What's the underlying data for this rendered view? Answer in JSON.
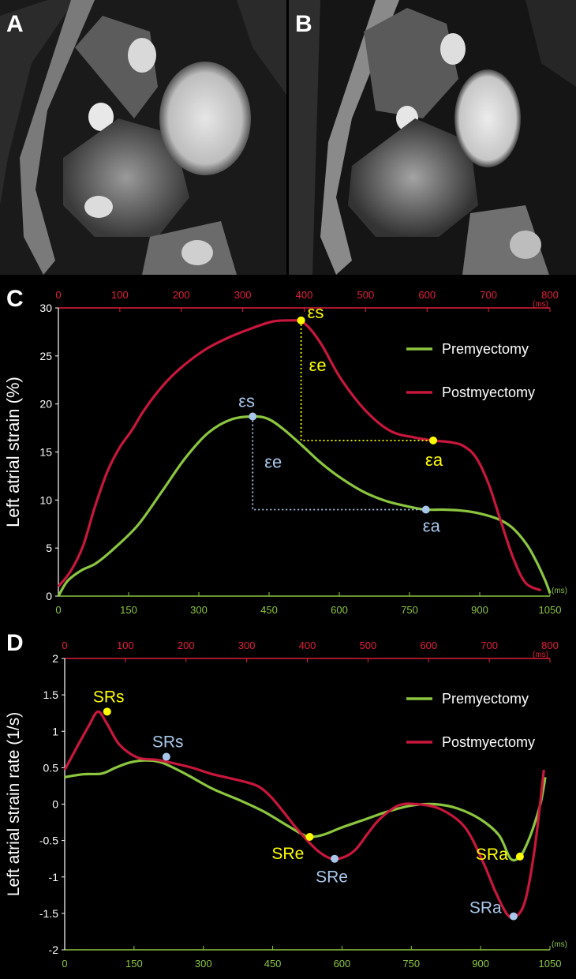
{
  "panels": {
    "a": {
      "letter": "A"
    },
    "b": {
      "letter": "B"
    },
    "c": {
      "letter": "C"
    },
    "d": {
      "letter": "D"
    }
  },
  "colors": {
    "pre": "#8cc63f",
    "post": "#c8173c",
    "annot_yellow": "#ffff00",
    "annot_blue": "#a9c7ea",
    "top_axis": "#e0203a",
    "bottom_axis": "#8cc63f"
  },
  "chart_data": [
    {
      "type": "line",
      "panel": "C",
      "ylabel": "Left atrial strain (%)",
      "ylim": [
        0,
        30
      ],
      "yticks": [
        0,
        5,
        10,
        15,
        20,
        25,
        30
      ],
      "x_bottom": {
        "range": [
          0,
          1050
        ],
        "ticks": [
          0,
          150,
          300,
          450,
          600,
          750,
          900,
          1050
        ],
        "unit": "(ms)"
      },
      "x_top": {
        "range": [
          0,
          800
        ],
        "ticks": [
          0,
          100,
          200,
          300,
          400,
          500,
          600,
          700,
          800
        ],
        "unit": "(ms)"
      },
      "legend": [
        "Premyectomy",
        "Postmyectomy"
      ],
      "legend_position": "top-right",
      "series": [
        {
          "name": "Premyectomy",
          "axis": "bottom",
          "x": [
            0,
            20,
            50,
            80,
            120,
            170,
            220,
            270,
            320,
            370,
            420,
            450,
            480,
            520,
            560,
            600,
            650,
            700,
            750,
            785,
            820,
            860,
            900,
            940,
            970,
            1000,
            1020,
            1040,
            1050
          ],
          "y": [
            0,
            1.6,
            2.7,
            3.4,
            5.0,
            7.4,
            10.8,
            14.3,
            17.0,
            18.4,
            18.7,
            18.4,
            17.4,
            15.7,
            13.9,
            12.4,
            10.9,
            9.9,
            9.3,
            9.0,
            9.0,
            8.9,
            8.6,
            8.0,
            7.1,
            5.4,
            3.7,
            1.6,
            0.3
          ]
        },
        {
          "name": "Postmyectomy",
          "axis": "top",
          "x": [
            0,
            20,
            40,
            60,
            80,
            100,
            120,
            140,
            170,
            200,
            240,
            280,
            320,
            350,
            380,
            395,
            410,
            430,
            460,
            500,
            540,
            580,
            610,
            640,
            660,
            680,
            700,
            720,
            740,
            760,
            785
          ],
          "y": [
            1.0,
            2.6,
            5.2,
            9.4,
            13.0,
            15.5,
            17.3,
            19.4,
            21.9,
            23.8,
            25.7,
            27.0,
            28.0,
            28.6,
            28.7,
            28.6,
            27.8,
            26.0,
            22.6,
            19.3,
            17.2,
            16.5,
            16.2,
            16.0,
            15.6,
            14.4,
            11.7,
            7.8,
            4.0,
            1.4,
            0.6
          ]
        }
      ],
      "annotations": [
        {
          "label": "εs",
          "color": "yellow",
          "x": 395,
          "y": 28.7,
          "axis": "top"
        },
        {
          "label": "εe",
          "color": "yellow"
        },
        {
          "label": "εa",
          "color": "yellow",
          "x": 610,
          "y": 16.2,
          "axis": "top"
        },
        {
          "label": "εs",
          "color": "blue",
          "x": 415,
          "y": 18.7,
          "axis": "bottom"
        },
        {
          "label": "εe",
          "color": "blue"
        },
        {
          "label": "εa",
          "color": "blue",
          "x": 785,
          "y": 9.0,
          "axis": "bottom"
        }
      ]
    },
    {
      "type": "line",
      "panel": "D",
      "ylabel": "Left atrial strain rate  (1/s)",
      "ylim": [
        -2,
        2
      ],
      "yticks": [
        -2,
        -1.5,
        -1,
        -0.5,
        0,
        0.5,
        1,
        1.5,
        2
      ],
      "x_bottom": {
        "range": [
          0,
          1050
        ],
        "ticks": [
          0,
          150,
          300,
          450,
          600,
          750,
          900,
          1050
        ],
        "unit": "(ms)"
      },
      "x_top": {
        "range": [
          0,
          800
        ],
        "ticks": [
          0,
          100,
          200,
          300,
          400,
          500,
          600,
          700,
          800
        ],
        "unit": "(ms)"
      },
      "legend": [
        "Premyectomy",
        "Postmyectomy"
      ],
      "legend_position": "top-right",
      "series": [
        {
          "name": "Premyectomy",
          "axis": "bottom",
          "x": [
            0,
            40,
            80,
            110,
            140,
            175,
            210,
            260,
            320,
            380,
            430,
            470,
            510,
            530,
            560,
            600,
            650,
            700,
            750,
            800,
            850,
            900,
            940,
            965,
            985,
            1000,
            1015,
            1030,
            1040
          ],
          "y": [
            0.37,
            0.41,
            0.42,
            0.5,
            0.57,
            0.6,
            0.57,
            0.42,
            0.21,
            0.05,
            -0.1,
            -0.25,
            -0.4,
            -0.45,
            -0.42,
            -0.32,
            -0.21,
            -0.1,
            -0.02,
            0.0,
            -0.06,
            -0.21,
            -0.43,
            -0.75,
            -0.72,
            -0.55,
            -0.3,
            0.02,
            0.37
          ]
        },
        {
          "name": "Postmyectomy",
          "axis": "top",
          "x": [
            0,
            20,
            40,
            55,
            70,
            90,
            120,
            150,
            180,
            210,
            240,
            270,
            300,
            320,
            340,
            360,
            380,
            400,
            420,
            440,
            460,
            480,
            500,
            520,
            550,
            580,
            620,
            660,
            690,
            710,
            730,
            745,
            760,
            775,
            790
          ],
          "y": [
            0.47,
            0.78,
            1.08,
            1.27,
            1.1,
            0.82,
            0.64,
            0.61,
            0.56,
            0.5,
            0.42,
            0.36,
            0.3,
            0.24,
            0.1,
            -0.1,
            -0.31,
            -0.5,
            -0.66,
            -0.75,
            -0.73,
            -0.62,
            -0.4,
            -0.2,
            -0.02,
            0.0,
            -0.07,
            -0.32,
            -0.8,
            -1.2,
            -1.52,
            -1.54,
            -1.3,
            -0.6,
            0.47
          ]
        }
      ],
      "annotations": [
        {
          "label": "SRs",
          "color": "yellow",
          "x": 70,
          "y": 1.27,
          "axis": "top"
        },
        {
          "label": "SRs",
          "color": "blue",
          "x": 220,
          "y": 0.65,
          "axis": "bottom"
        },
        {
          "label": "SRe",
          "color": "yellow",
          "x": 530,
          "y": -0.45,
          "axis": "bottom"
        },
        {
          "label": "SRe",
          "color": "blue",
          "x": 445,
          "y": -0.75,
          "axis": "top"
        },
        {
          "label": "SRa",
          "color": "yellow",
          "x": 985,
          "y": -0.72,
          "axis": "bottom"
        },
        {
          "label": "SRa",
          "color": "blue",
          "x": 740,
          "y": -1.54,
          "axis": "top"
        }
      ]
    }
  ]
}
